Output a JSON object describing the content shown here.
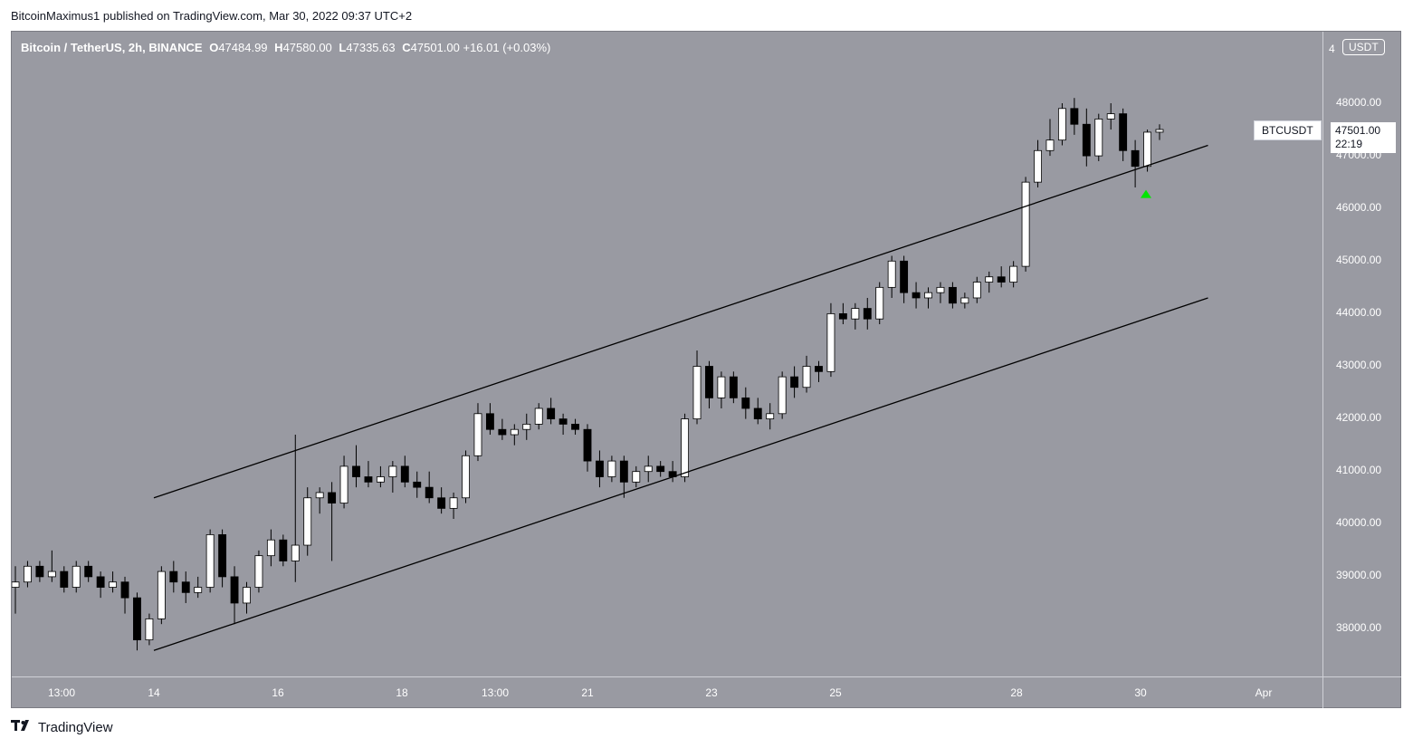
{
  "header": {
    "publisher_line": "BitcoinMaximus1 published on TradingView.com, Mar 30, 2022 09:37 UTC+2"
  },
  "legend": {
    "symbol": "Bitcoin / TetherUS, 2h, BINANCE",
    "open_label": "O",
    "open": "47484.99",
    "high_label": "H",
    "high": "47580.00",
    "low_label": "L",
    "low": "47335.63",
    "close_label": "C",
    "close": "47501.00",
    "change": "+16.01 (+0.03%)"
  },
  "price_axis": {
    "unit": "USDT",
    "top_partial_label": "4",
    "labels": [
      "48000.00",
      "47000.00",
      "46000.00",
      "45000.00",
      "44000.00",
      "43000.00",
      "42000.00",
      "41000.00",
      "40000.00",
      "39000.00",
      "38000.00"
    ]
  },
  "time_axis": {
    "labels": [
      "13:00",
      "14",
      "16",
      "18",
      "13:00",
      "21",
      "23",
      "25",
      "28",
      "30",
      "Apr"
    ]
  },
  "price_tag": {
    "symbol": "BTCUSDT",
    "price": "47501.00",
    "countdown": "22:19"
  },
  "footer": {
    "logo_text": "TradingView"
  },
  "colors": {
    "background": "#999aa2",
    "up_candle": "#ffffff",
    "down_candle": "#000000",
    "signal_arrow": "#00e600",
    "channel_line": "#000000"
  },
  "chart_data": {
    "type": "candlestick",
    "interval": "2h",
    "ylim": [
      37400,
      49000
    ],
    "x_labels": [
      "13:00",
      "14",
      "16",
      "18",
      "13:00",
      "21",
      "23",
      "25",
      "28",
      "30",
      "Apr"
    ],
    "channel": {
      "upper": [
        {
          "x": "Mar 14 00:00",
          "y": 40500
        },
        {
          "x": "Mar 31 00:00",
          "y": 47200
        }
      ],
      "lower": [
        {
          "x": "Mar 14 00:00",
          "y": 37600
        },
        {
          "x": "Mar 31 00:00",
          "y": 44300
        }
      ]
    },
    "signal": {
      "x": "Mar 30 00:00",
      "y": 46250,
      "marker": "up-arrow"
    },
    "ohlc": [
      [
        38800,
        39200,
        38300,
        38900
      ],
      [
        38900,
        39300,
        38800,
        39200
      ],
      [
        39200,
        39300,
        38900,
        39000
      ],
      [
        39000,
        39500,
        38900,
        39100
      ],
      [
        39100,
        39200,
        38700,
        38800
      ],
      [
        38800,
        39300,
        38700,
        39200
      ],
      [
        39200,
        39300,
        38900,
        39000
      ],
      [
        39000,
        39100,
        38600,
        38800
      ],
      [
        38800,
        39100,
        38700,
        38900
      ],
      [
        38900,
        39000,
        38300,
        38600
      ],
      [
        38600,
        38700,
        37600,
        37800
      ],
      [
        37800,
        38300,
        37700,
        38200
      ],
      [
        38200,
        39200,
        38100,
        39100
      ],
      [
        39100,
        39300,
        38700,
        38900
      ],
      [
        38900,
        39100,
        38500,
        38700
      ],
      [
        38700,
        39000,
        38600,
        38800
      ],
      [
        38800,
        39900,
        38700,
        39800
      ],
      [
        39800,
        39900,
        38800,
        39000
      ],
      [
        39000,
        39200,
        38100,
        38500
      ],
      [
        38500,
        38900,
        38300,
        38800
      ],
      [
        38800,
        39500,
        38700,
        39400
      ],
      [
        39400,
        39900,
        39200,
        39700
      ],
      [
        39700,
        39800,
        39200,
        39300
      ],
      [
        39300,
        41700,
        38900,
        39600
      ],
      [
        39600,
        40700,
        39400,
        40500
      ],
      [
        40500,
        40700,
        40200,
        40600
      ],
      [
        40600,
        40800,
        39300,
        40400
      ],
      [
        40400,
        41300,
        40300,
        41100
      ],
      [
        41100,
        41500,
        40700,
        40900
      ],
      [
        40900,
        41200,
        40700,
        40800
      ],
      [
        40800,
        41100,
        40700,
        40900
      ],
      [
        40900,
        41200,
        40600,
        41100
      ],
      [
        41100,
        41300,
        40700,
        40800
      ],
      [
        40800,
        41000,
        40500,
        40700
      ],
      [
        40700,
        41000,
        40400,
        40500
      ],
      [
        40500,
        40700,
        40200,
        40300
      ],
      [
        40300,
        40600,
        40100,
        40500
      ],
      [
        40500,
        41400,
        40400,
        41300
      ],
      [
        41300,
        42300,
        41200,
        42100
      ],
      [
        42100,
        42300,
        41700,
        41800
      ],
      [
        41800,
        42000,
        41600,
        41700
      ],
      [
        41700,
        41900,
        41500,
        41800
      ],
      [
        41800,
        42100,
        41600,
        41900
      ],
      [
        41900,
        42300,
        41800,
        42200
      ],
      [
        42200,
        42400,
        41900,
        42000
      ],
      [
        42000,
        42100,
        41700,
        41900
      ],
      [
        41900,
        42000,
        41700,
        41800
      ],
      [
        41800,
        41900,
        41000,
        41200
      ],
      [
        41200,
        41400,
        40700,
        40900
      ],
      [
        40900,
        41300,
        40800,
        41200
      ],
      [
        41200,
        41300,
        40500,
        40800
      ],
      [
        40800,
        41100,
        40700,
        41000
      ],
      [
        41000,
        41300,
        40800,
        41100
      ],
      [
        41100,
        41200,
        40900,
        41000
      ],
      [
        41000,
        41200,
        40800,
        40900
      ],
      [
        40900,
        42100,
        40800,
        42000
      ],
      [
        42000,
        43300,
        41900,
        43000
      ],
      [
        43000,
        43100,
        42200,
        42400
      ],
      [
        42400,
        42900,
        42200,
        42800
      ],
      [
        42800,
        42900,
        42300,
        42400
      ],
      [
        42400,
        42600,
        42000,
        42200
      ],
      [
        42200,
        42400,
        41900,
        42000
      ],
      [
        42000,
        42300,
        41800,
        42100
      ],
      [
        42100,
        42900,
        42000,
        42800
      ],
      [
        42800,
        43000,
        42400,
        42600
      ],
      [
        42600,
        43200,
        42500,
        43000
      ],
      [
        43000,
        43100,
        42700,
        42900
      ],
      [
        42900,
        44200,
        42800,
        44000
      ],
      [
        44000,
        44200,
        43800,
        43900
      ],
      [
        43900,
        44200,
        43700,
        44100
      ],
      [
        44100,
        44300,
        43700,
        43900
      ],
      [
        43900,
        44600,
        43800,
        44500
      ],
      [
        44500,
        45100,
        44300,
        45000
      ],
      [
        45000,
        45100,
        44200,
        44400
      ],
      [
        44400,
        44600,
        44100,
        44300
      ],
      [
        44300,
        44500,
        44100,
        44400
      ],
      [
        44400,
        44600,
        44200,
        44500
      ],
      [
        44500,
        44600,
        44100,
        44200
      ],
      [
        44200,
        44400,
        44100,
        44300
      ],
      [
        44300,
        44700,
        44200,
        44600
      ],
      [
        44600,
        44800,
        44400,
        44700
      ],
      [
        44700,
        44900,
        44500,
        44600
      ],
      [
        44600,
        45000,
        44500,
        44900
      ],
      [
        44900,
        46600,
        44800,
        46500
      ],
      [
        46500,
        47300,
        46400,
        47100
      ],
      [
        47100,
        47700,
        47000,
        47300
      ],
      [
        47300,
        48000,
        47200,
        47900
      ],
      [
        47900,
        48100,
        47400,
        47600
      ],
      [
        47600,
        47900,
        46800,
        47000
      ],
      [
        47000,
        47800,
        46900,
        47700
      ],
      [
        47700,
        48000,
        47500,
        47800
      ],
      [
        47800,
        47900,
        46900,
        47100
      ],
      [
        47100,
        47300,
        46400,
        46800
      ],
      [
        46800,
        47500,
        46700,
        47450
      ],
      [
        47450,
        47600,
        47300,
        47501
      ]
    ]
  }
}
